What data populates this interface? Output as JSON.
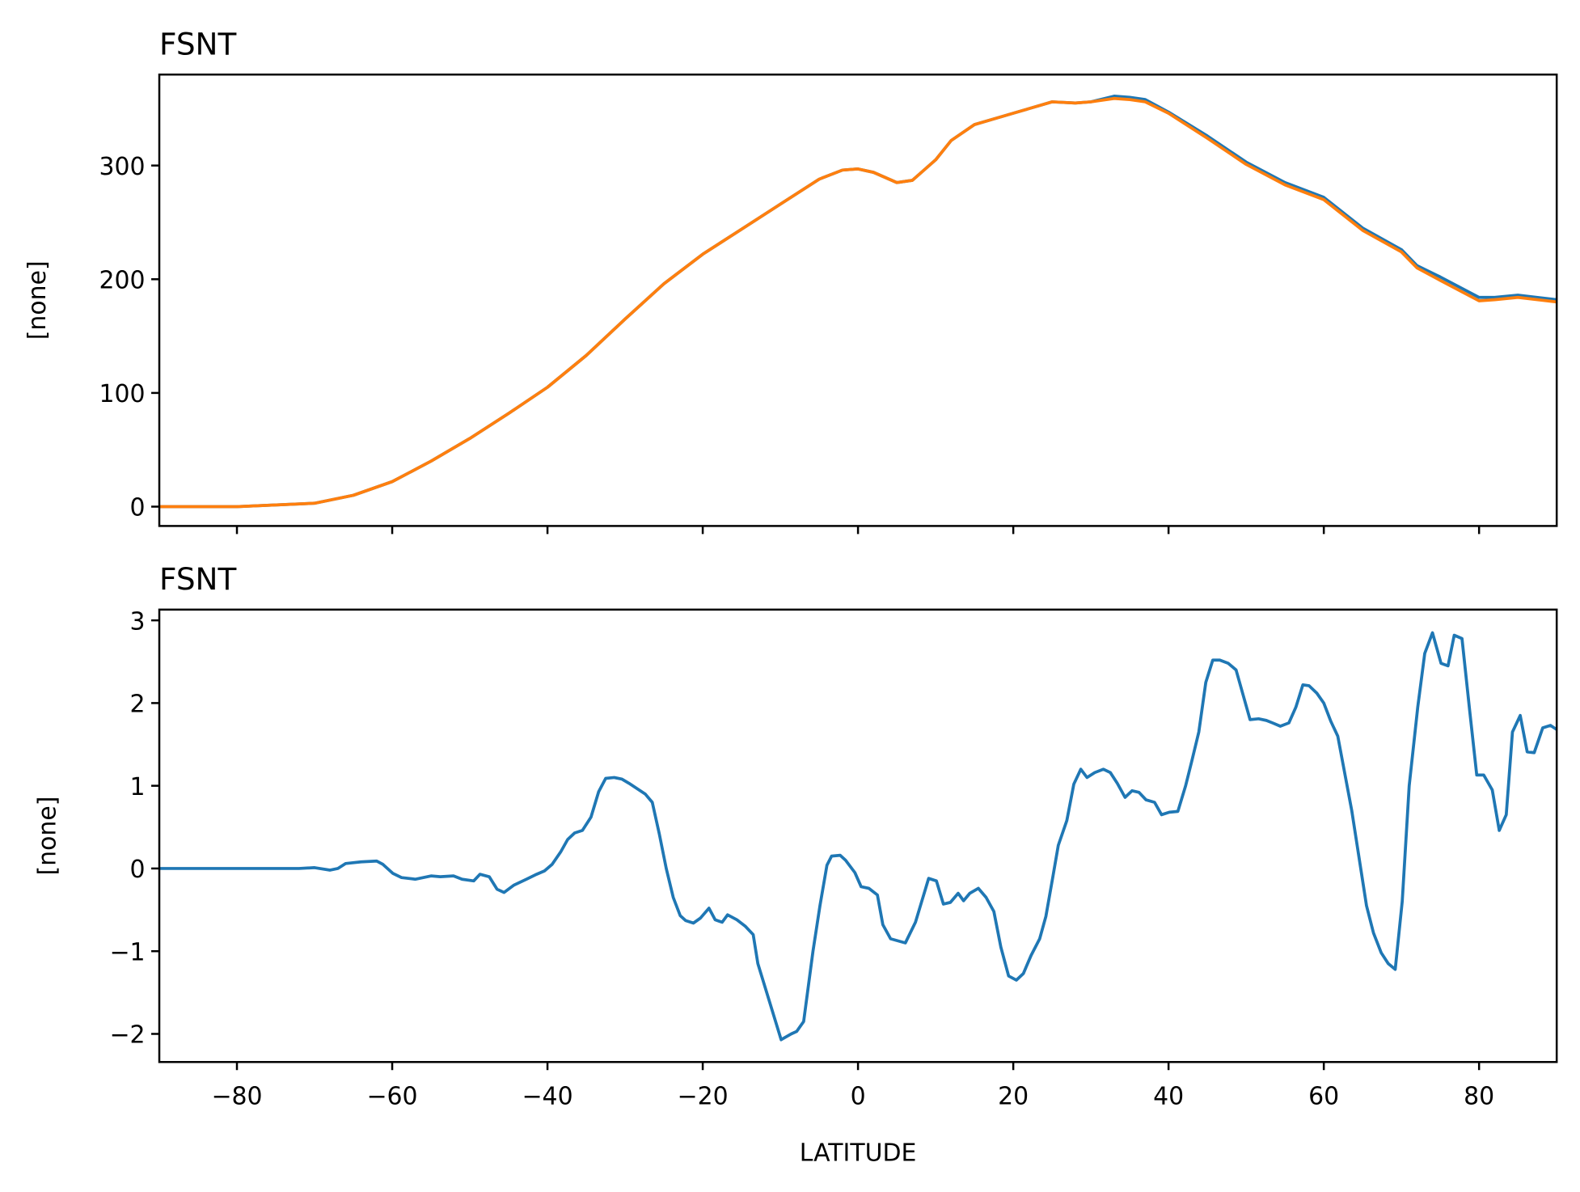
{
  "chart_data": [
    {
      "type": "line",
      "title": "FSNT",
      "ylabel": "[none]",
      "x": [
        -90,
        -80,
        -70,
        -65,
        -60,
        -55,
        -50,
        -45,
        -40,
        -35,
        -30,
        -25,
        -20,
        -15,
        -10,
        -5,
        -2,
        0,
        2,
        5,
        7,
        10,
        12,
        15,
        18,
        20,
        22,
        25,
        28,
        30,
        33,
        35,
        37,
        40,
        45,
        50,
        55,
        60,
        65,
        70,
        72,
        75,
        80,
        82,
        85,
        90
      ],
      "series": [
        {
          "color": "#1f77b4",
          "values": [
            0,
            0,
            3,
            10,
            22,
            40,
            60,
            82,
            105,
            133,
            165,
            196,
            222,
            244,
            266,
            288,
            296,
            297,
            294,
            285,
            287,
            305,
            322,
            336,
            342,
            346,
            350,
            356,
            355,
            356,
            361,
            360,
            358,
            347,
            326,
            303,
            285,
            272,
            245,
            226,
            212,
            202,
            184,
            184,
            186,
            182
          ]
        },
        {
          "color": "#ff7f0e",
          "values": [
            0,
            0,
            3,
            10,
            22,
            40,
            60,
            82,
            105,
            133,
            165,
            196,
            222,
            244,
            266,
            288,
            296,
            297,
            294,
            285,
            287,
            305,
            322,
            336,
            342,
            346,
            350,
            356,
            355,
            356,
            359,
            358,
            356,
            346,
            324,
            301,
            283,
            270,
            243,
            224,
            210,
            199,
            181,
            182,
            184,
            180
          ]
        }
      ],
      "xlim": [
        -90,
        90
      ],
      "xticks": [
        -80,
        -60,
        -40,
        -20,
        0,
        20,
        40,
        60,
        80
      ],
      "ylim": [
        -17,
        380
      ],
      "yticks": [
        0,
        100,
        200,
        300
      ]
    },
    {
      "type": "line",
      "title": "FSNT",
      "ylabel": "[none]",
      "xlabel": "LATITUDE",
      "x": [
        -90,
        -80,
        -72,
        -70,
        -68,
        -67,
        -66,
        -64,
        -62,
        -61.2,
        -59.9,
        -58.8,
        -57,
        -55,
        -53.8,
        -52.1,
        -51,
        -49.5,
        -48.7,
        -47.5,
        -46.5,
        -45.6,
        -44.3,
        -42.7,
        -41.4,
        -40.4,
        -39.4,
        -38.3,
        -37.4,
        -36.5,
        -35.5,
        -34.4,
        -33.4,
        -32.5,
        -31.4,
        -30.4,
        -29.5,
        -27.4,
        -26.5,
        -25.6,
        -24.7,
        -23.8,
        -22.9,
        -22.2,
        -21.2,
        -20.3,
        -19.2,
        -18.4,
        -17.5,
        -16.8,
        -15.6,
        -14.5,
        -13.5,
        -12.9,
        -9.9,
        -8.6,
        -7.9,
        -7,
        -5.8,
        -4.9,
        -4,
        -3.4,
        -2.3,
        -1.6,
        -0.4,
        0.4,
        1.4,
        2.5,
        3.2,
        4.2,
        6.1,
        7.4,
        8.2,
        9.1,
        10.1,
        11,
        11.9,
        12.9,
        13.6,
        14.4,
        15.5,
        16.5,
        17.5,
        18.4,
        19.4,
        20.4,
        21.3,
        22.3,
        23.4,
        24.2,
        25.1,
        25.8,
        26.9,
        27.8,
        28.7,
        29.5,
        30.5,
        31.6,
        32.5,
        33.4,
        34.4,
        35.3,
        36.2,
        37.1,
        38.2,
        39.1,
        40.1,
        41.2,
        42.2,
        43,
        43.9,
        44.8,
        45.7,
        46.6,
        47.7,
        48.7,
        50.5,
        51.6,
        52.6,
        53.4,
        54.4,
        55.5,
        56.4,
        57.3,
        58.1,
        59.1,
        60,
        60.9,
        61.8,
        63.6,
        65.5,
        66.4,
        67.4,
        68.3,
        69.2,
        70.1,
        71,
        72.1,
        73,
        74,
        75.1,
        76,
        76.8,
        77.8,
        78.8,
        79.7,
        80.6,
        81.7,
        82.6,
        83.5,
        84.3,
        85.3,
        86.2,
        87.1,
        88.2,
        89.2,
        90
      ],
      "series": [
        {
          "color": "#1f77b4",
          "values": [
            0,
            0,
            0,
            0.01,
            -0.02,
            0,
            0.06,
            0.08,
            0.09,
            0.05,
            -0.06,
            -0.11,
            -0.13,
            -0.09,
            -0.1,
            -0.09,
            -0.13,
            -0.15,
            -0.07,
            -0.1,
            -0.25,
            -0.29,
            -0.2,
            -0.13,
            -0.07,
            -0.03,
            0.05,
            0.2,
            0.35,
            0.43,
            0.46,
            0.62,
            0.93,
            1.09,
            1.1,
            1.08,
            1.03,
            0.9,
            0.8,
            0.42,
            0,
            -0.35,
            -0.57,
            -0.63,
            -0.66,
            -0.6,
            -0.48,
            -0.62,
            -0.65,
            -0.56,
            -0.62,
            -0.7,
            -0.8,
            -1.15,
            -2.07,
            -2,
            -1.97,
            -1.85,
            -1,
            -0.45,
            0.04,
            0.15,
            0.16,
            0.1,
            -0.05,
            -0.22,
            -0.24,
            -0.32,
            -0.68,
            -0.85,
            -0.9,
            -0.65,
            -0.4,
            -0.12,
            -0.15,
            -0.43,
            -0.41,
            -0.3,
            -0.39,
            -0.3,
            -0.24,
            -0.35,
            -0.52,
            -0.95,
            -1.3,
            -1.35,
            -1.27,
            -1.05,
            -0.85,
            -0.58,
            -0.1,
            0.28,
            0.58,
            1.02,
            1.2,
            1.1,
            1.16,
            1.2,
            1.16,
            1.03,
            0.86,
            0.94,
            0.92,
            0.83,
            0.8,
            0.65,
            0.68,
            0.69,
            1,
            1.3,
            1.65,
            2.25,
            2.52,
            2.52,
            2.48,
            2.4,
            1.8,
            1.81,
            1.79,
            1.76,
            1.72,
            1.76,
            1.95,
            2.22,
            2.21,
            2.12,
            2,
            1.78,
            1.6,
            0.7,
            -0.45,
            -0.78,
            -1.02,
            -1.15,
            -1.22,
            -0.4,
            1,
            1.95,
            2.6,
            2.85,
            2.48,
            2.45,
            2.82,
            2.78,
            1.9,
            1.13,
            1.13,
            0.95,
            0.46,
            0.65,
            1.65,
            1.85,
            1.41,
            1.4,
            1.7,
            1.73,
            1.68
          ]
        }
      ],
      "xlim": [
        -90,
        90
      ],
      "xticks": [
        {
          "value": -80,
          "label": "−80"
        },
        {
          "value": -60,
          "label": "−60"
        },
        {
          "value": -40,
          "label": "−40"
        },
        {
          "value": -20,
          "label": "−20"
        },
        0,
        20,
        40,
        60,
        80
      ],
      "ylim": [
        -2.34,
        3.13
      ],
      "yticks": [
        {
          "value": -2,
          "label": "−2"
        },
        {
          "value": -1,
          "label": "−1"
        },
        0,
        1,
        2,
        3
      ]
    }
  ]
}
